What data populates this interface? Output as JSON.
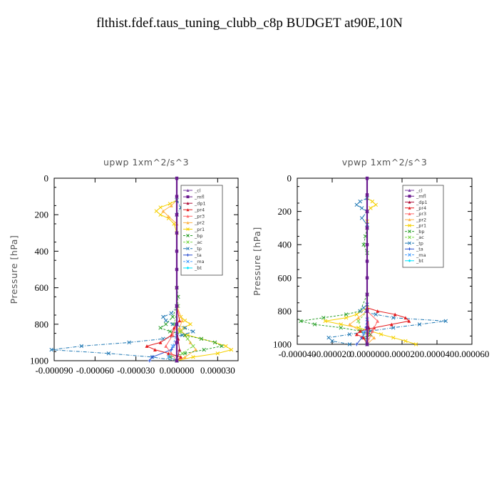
{
  "page_title": "flthist.fdef.taus_tuning_clubb_c8p  BUDGET at90E,10N",
  "colors": {
    "_cl": "#7a3fa5",
    "_mfl": "#6a1b8f",
    "_dp1": "#b0123a",
    "_pr4": "#e41a1c",
    "_pr3": "#ff6a6a",
    "_pr2": "#ffb347",
    "_pr1": "#f5d000",
    "_bp": "#2ca02c",
    "_ac": "#7cd84a",
    "_tp": "#1f78b4",
    "_ta": "#2a4fd0",
    "_ma": "#4aa0ff",
    "_bt": "#00e5ff"
  },
  "chart_data": [
    {
      "type": "line",
      "title": "upwp   1xm^2/s^3",
      "ylabel": "Pressure [hPa]",
      "xlim": [
        -9e-05,
        4.5e-05
      ],
      "ylim": [
        1000,
        0
      ],
      "xticks": [
        -9e-05,
        -6e-05,
        -3e-05,
        0,
        3e-05
      ],
      "xtick_labels": [
        "-0.000090",
        "-0.000060",
        "-0.000030",
        "0.000000",
        "0.000030"
      ],
      "yticks": [
        0,
        200,
        400,
        600,
        800,
        1000
      ],
      "ytick_labels": [
        "0",
        "200",
        "400",
        "600",
        "800",
        "1000"
      ],
      "legend": [
        "_cl",
        "_mfl",
        "_dp1",
        "_pr4",
        "_pr3",
        "_pr2",
        "_pr1",
        "_bp",
        "_ac",
        "_tp",
        "_ta",
        "_ma",
        "_bt"
      ],
      "legend_placement": "top-right",
      "series": [
        {
          "name": "_pr1",
          "color": "#f5d000",
          "y": [
            120,
            140,
            160,
            180,
            200,
            220,
            250,
            300,
            700,
            760,
            780,
            800,
            820,
            840,
            860,
            880,
            900,
            920,
            940,
            960,
            980,
            1000
          ],
          "values": [
            0,
            -5e-06,
            -1.2e-05,
            -1.5e-05,
            -1.2e-05,
            -6e-06,
            -2e-06,
            0,
            0,
            3e-06,
            6e-06,
            1e-05,
            5e-06,
            2e-06,
            8e-06,
            1.8e-05,
            2.8e-05,
            3.6e-05,
            4e-05,
            3e-05,
            1.2e-05,
            0
          ]
        },
        {
          "name": "_pr2",
          "color": "#ffb347",
          "y": [
            120,
            150,
            180,
            210,
            250,
            700,
            780,
            820,
            860,
            900,
            940,
            980,
            1000
          ],
          "values": [
            0,
            -4e-06,
            -1e-05,
            -6e-06,
            0,
            0,
            4e-06,
            2e-06,
            6e-06,
            1e-05,
            1.4e-05,
            6e-06,
            0
          ]
        },
        {
          "name": "_bp",
          "color": "#2ca02c",
          "y": [
            600,
            650,
            700,
            760,
            800,
            820,
            840,
            860,
            880,
            900,
            920,
            940,
            960,
            980,
            1000
          ],
          "values": [
            0,
            1e-06,
            0,
            -3e-06,
            -8e-06,
            -1.2e-05,
            -5e-06,
            6e-06,
            1.8e-05,
            2.8e-05,
            3.3e-05,
            2e-05,
            6e-06,
            -5e-06,
            0
          ]
        },
        {
          "name": "_ac",
          "color": "#7cd84a",
          "y": [
            600,
            700,
            800,
            840,
            880,
            920,
            960,
            1000
          ],
          "values": [
            0,
            1e-06,
            -2e-06,
            3e-06,
            8e-06,
            1.2e-05,
            4e-06,
            0
          ]
        },
        {
          "name": "_tp",
          "color": "#1f78b4",
          "y": [
            120,
            160,
            200,
            700,
            740,
            760,
            780,
            800,
            820,
            840,
            860,
            880,
            900,
            920,
            940,
            960,
            980,
            1000
          ],
          "values": [
            0,
            3e-06,
            0,
            0,
            -4e-06,
            -1e-05,
            -8e-06,
            -3e-06,
            6e-06,
            1.2e-05,
            4e-06,
            -1e-05,
            -3.5e-05,
            -7e-05,
            -9.2e-05,
            -5e-05,
            -1.8e-05,
            0
          ]
        },
        {
          "name": "_ta",
          "color": "#2a4fd0",
          "y": [
            900,
            940,
            980,
            1000
          ],
          "values": [
            0,
            -4e-06,
            -1.8e-05,
            -2e-05
          ]
        },
        {
          "name": "_pr4",
          "color": "#e41a1c",
          "y": [
            700,
            780,
            820,
            860,
            900,
            920,
            940,
            960,
            980,
            1000
          ],
          "values": [
            0,
            2e-06,
            -2e-06,
            -4e-06,
            -1.2e-05,
            -2.2e-05,
            -1.6e-05,
            -6e-06,
            3e-06,
            0
          ]
        },
        {
          "name": "_pr3",
          "color": "#ff6a6a",
          "y": [
            800,
            860,
            920,
            960,
            1000
          ],
          "values": [
            0,
            -3e-06,
            -8e-06,
            -4e-06,
            0
          ]
        },
        {
          "name": "_dp1",
          "color": "#b0123a",
          "y": [
            800,
            880,
            940,
            1000
          ],
          "values": [
            0,
            1e-06,
            2e-06,
            0
          ]
        },
        {
          "name": "_ma",
          "color": "#4aa0ff",
          "y": [
            850,
            920,
            980,
            1000
          ],
          "values": [
            0,
            -3e-06,
            -6e-06,
            0
          ]
        },
        {
          "name": "_bt",
          "color": "#00e5ff",
          "y": [
            0,
            500,
            1000
          ],
          "values": [
            0,
            0,
            0
          ]
        },
        {
          "name": "_cl",
          "color": "#7a3fa5",
          "y": [
            0,
            1000
          ],
          "values": [
            0,
            0
          ]
        },
        {
          "name": "_mfl",
          "color": "#6a1b8f",
          "y": [
            0,
            100,
            200,
            300,
            400,
            500,
            600,
            700,
            800,
            900,
            1000
          ],
          "values": [
            0,
            0,
            0,
            0,
            0,
            0,
            0,
            0,
            0,
            0,
            0
          ]
        }
      ]
    },
    {
      "type": "line",
      "title": "vpwp   1xm^2/s^3",
      "ylabel": "Pressure [hPa]",
      "xlim": [
        -4e-05,
        6e-05
      ],
      "ylim": [
        1000,
        0
      ],
      "xticks": [
        -4e-05,
        -2e-05,
        0,
        2e-05,
        4e-05,
        6e-05
      ],
      "xtick_labels": [
        "-0.000040",
        "-0.000020",
        "0.000000",
        "0.000020",
        "0.000040",
        "0.000060"
      ],
      "yticks": [
        0,
        200,
        400,
        600,
        800,
        1000
      ],
      "ytick_labels": [
        "0",
        "200",
        "400",
        "600",
        "800",
        "1000"
      ],
      "legend": [
        "_cl",
        "_mfl",
        "_dp1",
        "_pr4",
        "_pr3",
        "_pr2",
        "_pr1",
        "_bp",
        "_ac",
        "_tp",
        "_ta",
        "_ma",
        "_bt"
      ],
      "legend_placement": "top-right",
      "series": [
        {
          "name": "_pr1",
          "color": "#f5d000",
          "y": [
            120,
            140,
            160,
            180,
            200,
            260,
            780,
            820,
            840,
            860,
            880,
            900,
            920,
            940,
            960,
            980,
            1000
          ],
          "values": [
            0,
            3e-06,
            5e-06,
            2e-06,
            0,
            0,
            0,
            -6e-06,
            -1.2e-05,
            -2.4e-05,
            -1.5e-05,
            -5e-06,
            2e-06,
            8e-06,
            1.5e-05,
            2.2e-05,
            2.8e-05
          ]
        },
        {
          "name": "_pr2",
          "color": "#ffb347",
          "y": [
            800,
            840,
            880,
            920,
            960,
            1000
          ],
          "values": [
            0,
            -5e-06,
            -1e-05,
            -4e-06,
            4e-06,
            0
          ]
        },
        {
          "name": "_bp",
          "color": "#2ca02c",
          "y": [
            300,
            350,
            400,
            450,
            700,
            800,
            820,
            840,
            860,
            880,
            900,
            920,
            940,
            960,
            1000
          ],
          "values": [
            0,
            -1e-06,
            -2e-06,
            0,
            0,
            -4e-06,
            -1.2e-05,
            -2.5e-05,
            -3.8e-05,
            -3e-05,
            -1.5e-05,
            -4e-06,
            2e-06,
            0,
            0
          ]
        },
        {
          "name": "_ac",
          "color": "#7cd84a",
          "y": [
            800,
            860,
            920,
            1000
          ],
          "values": [
            0,
            -5e-06,
            -3e-06,
            0
          ]
        },
        {
          "name": "_tp",
          "color": "#1f78b4",
          "y": [
            120,
            140,
            160,
            180,
            200,
            240,
            280,
            760,
            780,
            800,
            820,
            840,
            860,
            880,
            900,
            920,
            940,
            960,
            980,
            1000
          ],
          "values": [
            0,
            -4e-06,
            -6e-06,
            -3e-06,
            0,
            -3e-06,
            0,
            0,
            -2e-06,
            -4e-06,
            5e-06,
            1.5e-05,
            4.5e-05,
            3e-05,
            1.5e-05,
            2e-06,
            -1e-05,
            -2.2e-05,
            -2e-05,
            -1e-05
          ]
        },
        {
          "name": "_ta",
          "color": "#2a4fd0",
          "y": [
            900,
            960,
            1000
          ],
          "values": [
            0,
            -3e-06,
            -6e-06
          ]
        },
        {
          "name": "_pr4",
          "color": "#e41a1c",
          "y": [
            780,
            800,
            820,
            840,
            860,
            880,
            900,
            920,
            940,
            960,
            1000
          ],
          "values": [
            0,
            6e-06,
            1.6e-05,
            2.2e-05,
            2.4e-05,
            1.4e-05,
            4e-06,
            -4e-06,
            -6e-06,
            -2e-06,
            0
          ]
        },
        {
          "name": "_pr3",
          "color": "#ff6a6a",
          "y": [
            800,
            860,
            920,
            1000
          ],
          "values": [
            0,
            6e-06,
            3e-06,
            0
          ]
        },
        {
          "name": "_dp1",
          "color": "#b0123a",
          "y": [
            800,
            900,
            1000
          ],
          "values": [
            0,
            1e-06,
            0
          ]
        },
        {
          "name": "_ma",
          "color": "#4aa0ff",
          "y": [
            850,
            930,
            1000
          ],
          "values": [
            0,
            -2e-06,
            0
          ]
        },
        {
          "name": "_bt",
          "color": "#00e5ff",
          "y": [
            0,
            500,
            1000
          ],
          "values": [
            0,
            0,
            0
          ]
        },
        {
          "name": "_cl",
          "color": "#7a3fa5",
          "y": [
            0,
            1000
          ],
          "values": [
            0,
            0
          ]
        },
        {
          "name": "_mfl",
          "color": "#6a1b8f",
          "y": [
            0,
            100,
            200,
            300,
            400,
            500,
            600,
            700,
            800,
            900,
            1000
          ],
          "values": [
            0,
            0,
            0,
            0,
            0,
            0,
            0,
            0,
            0,
            0,
            0
          ]
        }
      ]
    }
  ]
}
